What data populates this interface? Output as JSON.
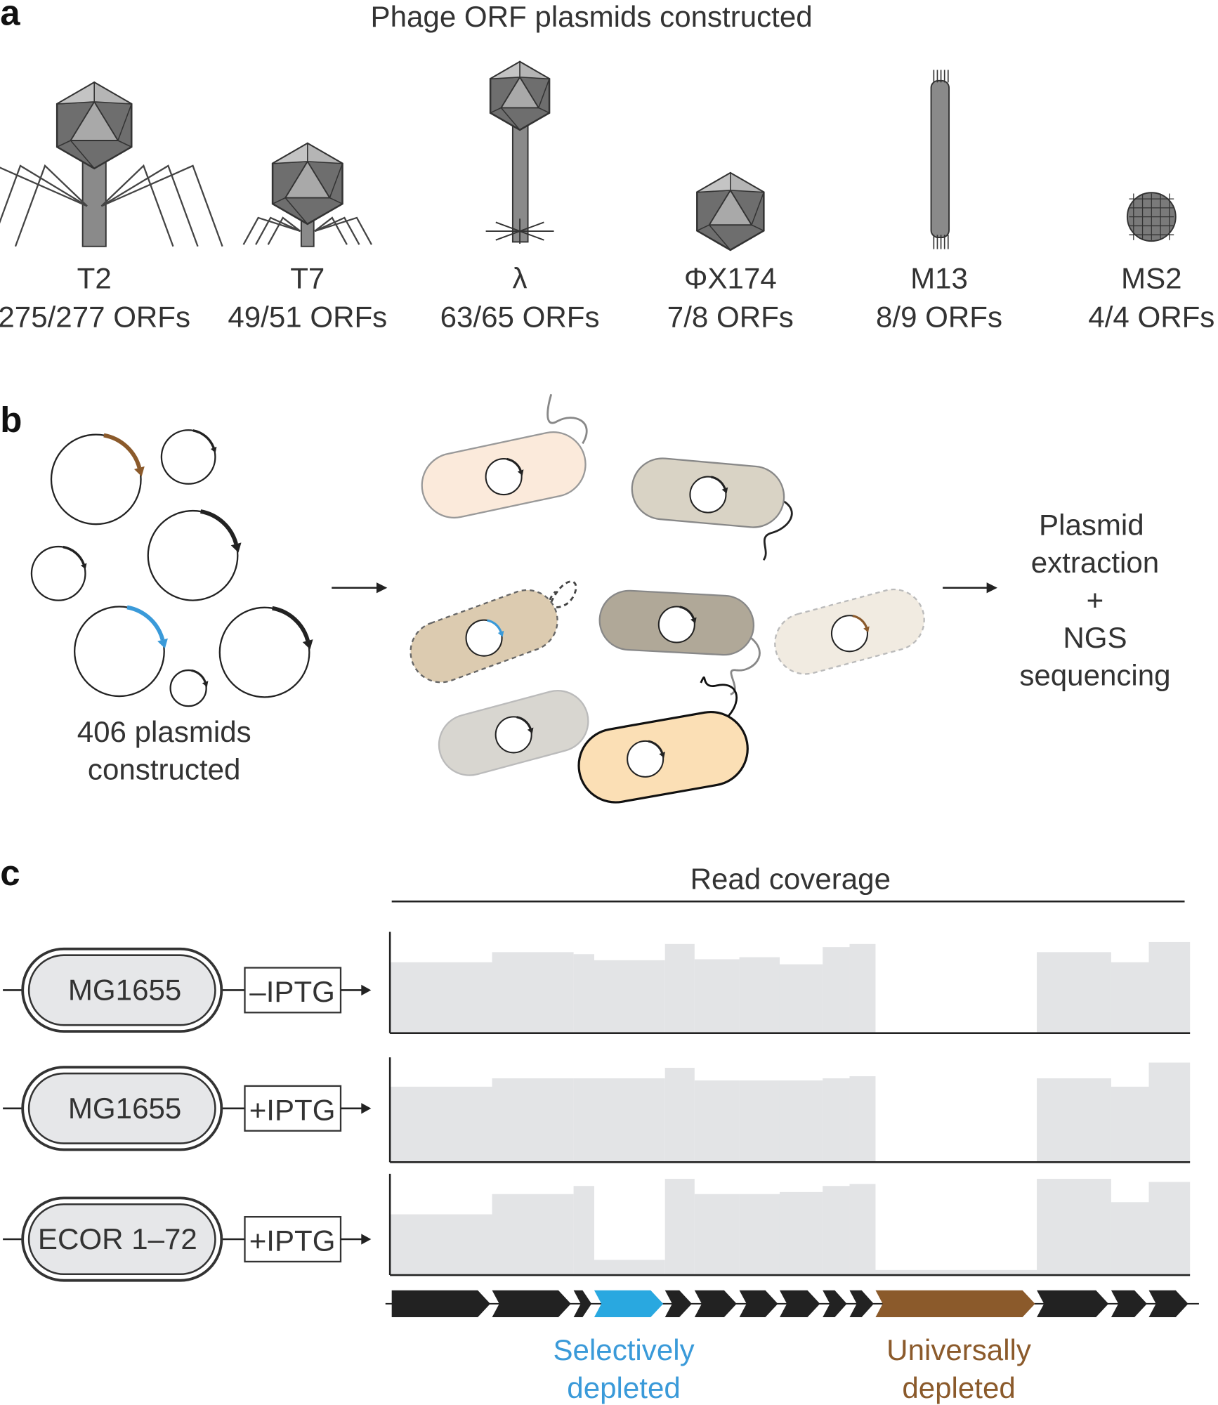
{
  "panel_a": {
    "label": "a",
    "title": "Phage ORF plasmids constructed",
    "phages": [
      {
        "name": "T2",
        "orfs": "275/277 ORFs"
      },
      {
        "name": "T7",
        "orfs": "49/51 ORFs"
      },
      {
        "name": "λ",
        "orfs": "63/65 ORFs"
      },
      {
        "name": "ΦX174",
        "orfs": "7/8 ORFs"
      },
      {
        "name": "M13",
        "orfs": "8/9 ORFs"
      },
      {
        "name": "MS2",
        "orfs": "4/4 ORFs"
      }
    ]
  },
  "panel_b": {
    "label": "b",
    "plasmids_line1": "406 plasmids",
    "plasmids_line2": "constructed",
    "step_lines": [
      "Plasmid",
      "extraction",
      "+",
      "NGS",
      "sequencing"
    ]
  },
  "panel_c": {
    "label": "c",
    "coverage_title": "Read coverage",
    "rows": [
      {
        "strain": "MG1655",
        "condition": "–IPTG"
      },
      {
        "strain": "MG1655",
        "condition": "+IPTG"
      },
      {
        "strain": "ECOR 1–72",
        "condition": "+IPTG"
      }
    ],
    "gene_colors": [
      "#222222",
      "#222222",
      "#222222",
      "#29a8e0",
      "#222222",
      "#222222",
      "#222222",
      "#222222",
      "#222222",
      "#222222",
      "#8b5a2b",
      "#222222",
      "#222222",
      "#222222"
    ],
    "coverage_percent_by_gene": [
      [
        70,
        80,
        78,
        72,
        88,
        73,
        75,
        68,
        85,
        88,
        0,
        80,
        70,
        90
      ],
      [
        72,
        80,
        80,
        80,
        90,
        78,
        78,
        78,
        80,
        82,
        0,
        80,
        72,
        95
      ],
      [
        60,
        80,
        88,
        15,
        95,
        80,
        80,
        82,
        88,
        90,
        5,
        95,
        72,
        92
      ]
    ],
    "selective_label": [
      "Selectively",
      "depleted"
    ],
    "universal_label": [
      "Universally",
      "depleted"
    ]
  },
  "colors": {
    "selective": "#3a9ad9",
    "universal": "#8b5a2b",
    "coverage_fill": "#e3e4e6",
    "phage_gray": "#8a8a8a"
  }
}
